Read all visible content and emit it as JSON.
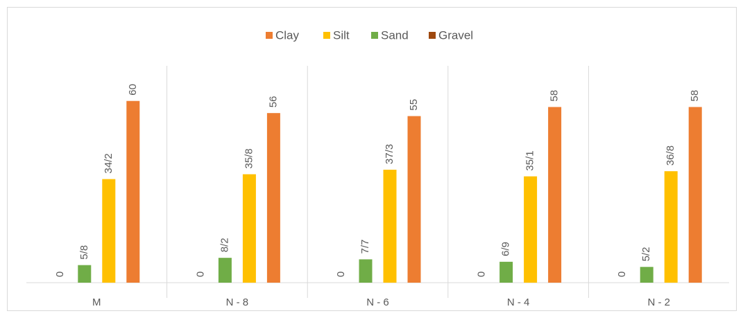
{
  "chart_data": {
    "type": "bar",
    "categories": [
      "M",
      "N - 8",
      "N - 6",
      "N - 4",
      "N - 2"
    ],
    "series": [
      {
        "name": "Clay",
        "color": "#ED7D31",
        "values": [
          60,
          56,
          55,
          58,
          58
        ],
        "value_labels": [
          "60",
          "56",
          "55",
          "58",
          "58"
        ]
      },
      {
        "name": "Silt",
        "color": "#FFC000",
        "values": [
          34.2,
          35.8,
          37.3,
          35.1,
          36.8
        ],
        "value_labels": [
          "34/2",
          "35/8",
          "37/3",
          "35/1",
          "36/8"
        ]
      },
      {
        "name": "Sand",
        "color": "#70AD47",
        "values": [
          5.8,
          8.2,
          7.7,
          6.9,
          5.2
        ],
        "value_labels": [
          "5/8",
          "8/2",
          "7/7",
          "6/9",
          "5/2"
        ]
      },
      {
        "name": "Gravel",
        "color": "#9E480E",
        "values": [
          0,
          0,
          0,
          0,
          0
        ],
        "value_labels": [
          "0",
          "0",
          "0",
          "0",
          "0"
        ]
      }
    ],
    "ylim": [
      0,
      70
    ],
    "legend": "top"
  }
}
